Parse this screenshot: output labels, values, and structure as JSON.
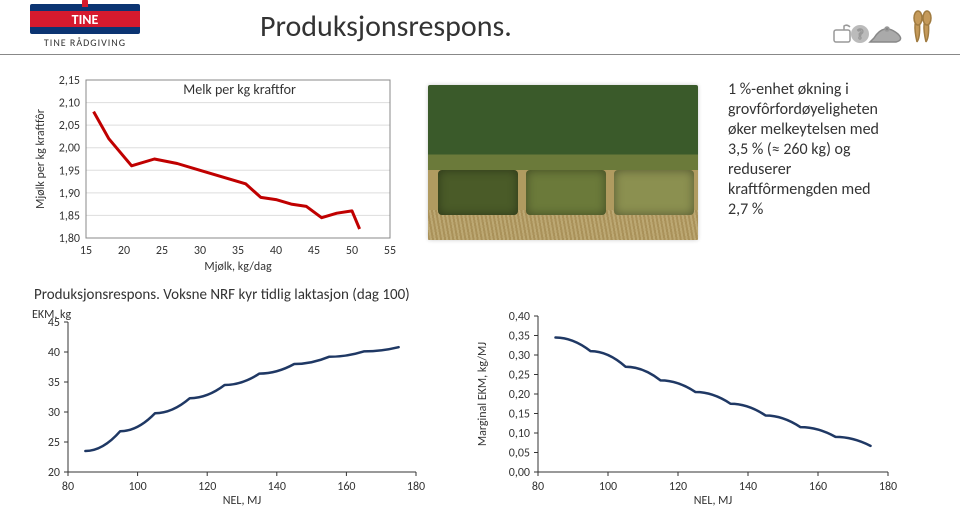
{
  "header": {
    "title": "Produksjonsrespons.",
    "logo_text": "TINE",
    "logo_subtext": "TINE RÅDGIVING"
  },
  "infobox": {
    "lines": [
      "1 %-enhet økning i",
      "grovfôrfordøyeligheten",
      "øker melkeytelsen med",
      "3,5 % (≈ 260 kg) og",
      "reduserer",
      "kraftfôrmengden med",
      "2,7 %"
    ]
  },
  "subtitle": "Produksjonsrespons. Voksne NRF kyr tidlig laktasjon (dag 100)",
  "chart1": {
    "type": "line",
    "legend_label": "Melk per kg kraftfor",
    "x_label": "Mjølk, kg/dag",
    "y_label": "Mjølk per kg kraftfôr",
    "xlim": [
      15,
      55
    ],
    "ylim": [
      1.8,
      2.15
    ],
    "xtick_step": 5,
    "ytick_step": 0.05,
    "ytick_labels": [
      "1,80",
      "1,85",
      "1,90",
      "1,95",
      "2,00",
      "2,05",
      "2,10",
      "2,15"
    ],
    "line_color": "#c00000",
    "grid_color": "#dddddd",
    "border_color": "#888888",
    "series_x": [
      16,
      18,
      21,
      24,
      27,
      30,
      33,
      36,
      38,
      40,
      42,
      44,
      46,
      48,
      50,
      51
    ],
    "series_y": [
      2.08,
      2.02,
      1.96,
      1.975,
      1.965,
      1.95,
      1.935,
      1.92,
      1.89,
      1.885,
      1.875,
      1.87,
      1.845,
      1.855,
      1.86,
      1.82
    ]
  },
  "chart2": {
    "type": "line",
    "x_label": "NEL, MJ",
    "y_label_inline": "EKM, kg",
    "xlim": [
      80,
      180
    ],
    "ylim": [
      20,
      45
    ],
    "xtick_step": 20,
    "ytick_step": 5,
    "line_color": "#1f3864",
    "series_x": [
      85,
      95,
      105,
      115,
      125,
      135,
      145,
      155,
      165,
      175
    ],
    "series_y": [
      23.5,
      26.8,
      29.8,
      32.3,
      34.5,
      36.4,
      38.0,
      39.2,
      40.1,
      40.8
    ]
  },
  "chart3": {
    "type": "line",
    "x_label": "NEL, MJ",
    "y_label": "Marginal EKM, kg/MJ",
    "xlim": [
      80,
      180
    ],
    "ylim": [
      0.0,
      0.4
    ],
    "xtick_step": 20,
    "ytick_step": 0.05,
    "ytick_labels": [
      "0,00",
      "0,05",
      "0,10",
      "0,15",
      "0,20",
      "0,25",
      "0,30",
      "0,35",
      "0,40"
    ],
    "line_color": "#1f3864",
    "series_x": [
      85,
      95,
      105,
      115,
      125,
      135,
      145,
      155,
      165,
      175
    ],
    "series_y": [
      0.345,
      0.31,
      0.27,
      0.235,
      0.205,
      0.175,
      0.145,
      0.115,
      0.09,
      0.067
    ]
  }
}
